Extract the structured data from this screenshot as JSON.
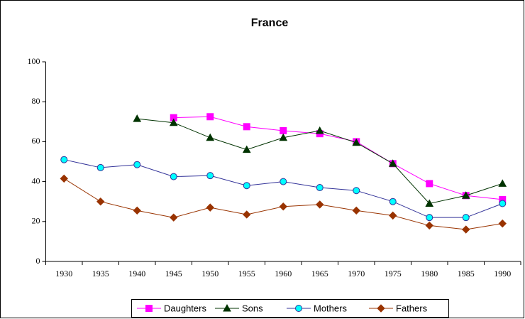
{
  "chart_data": {
    "type": "line",
    "title": "France",
    "categories": [
      1930,
      1935,
      1940,
      1945,
      1950,
      1955,
      1960,
      1965,
      1970,
      1975,
      1980,
      1985,
      1990
    ],
    "series": [
      {
        "name": "Daughters",
        "color": "#ff00ff",
        "marker": "square",
        "values": [
          null,
          null,
          null,
          72,
          72.5,
          67.5,
          65.5,
          64,
          60,
          49,
          39,
          33,
          31
        ]
      },
      {
        "name": "Sons",
        "color": "#003300",
        "marker": "triangle",
        "values": [
          null,
          null,
          71.5,
          69.5,
          62,
          56,
          62,
          65.5,
          59.5,
          49,
          29,
          33,
          39
        ]
      },
      {
        "name": "Mothers",
        "color": "#333399",
        "marker": "circle",
        "marker_color": "#00ffff",
        "values": [
          51,
          47,
          48.5,
          42.5,
          43,
          38,
          40,
          37,
          35.5,
          30,
          22,
          22,
          29
        ]
      },
      {
        "name": "Fathers",
        "color": "#993300",
        "marker": "diamond",
        "values": [
          41.5,
          30,
          25.5,
          22,
          27,
          23.5,
          27.5,
          28.5,
          25.5,
          23,
          18,
          16,
          19
        ]
      }
    ],
    "ylim": [
      0,
      100
    ],
    "yticks": [
      0,
      20,
      40,
      60,
      80,
      100
    ],
    "grid": false,
    "legend": "bottom"
  }
}
